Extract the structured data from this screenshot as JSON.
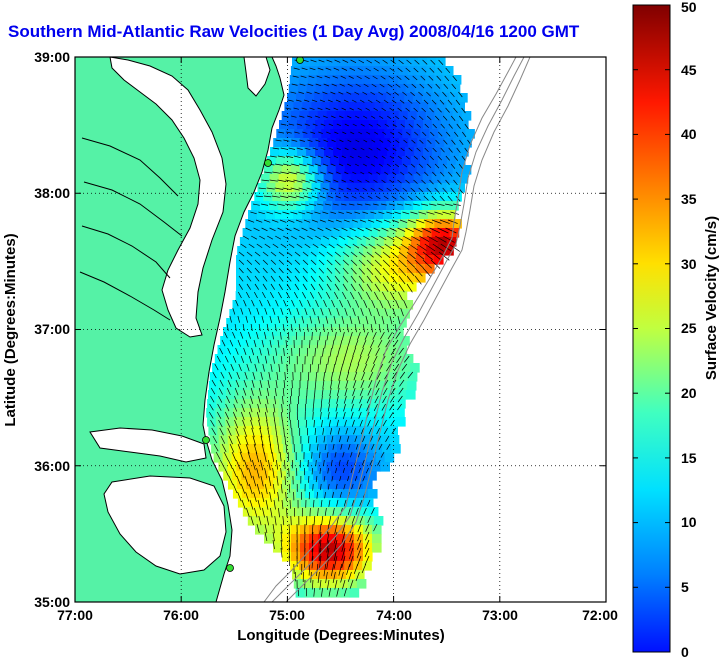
{
  "title": "Southern Mid-Atlantic Raw Velocities (1 Day Avg) 2008/04/16 1200 GMT",
  "title_color": "#0000ee",
  "map": {
    "xlabel": "Longitude (Degrees:Minutes)",
    "ylabel": "Latitude (Degrees:Minutes)",
    "lon_range": [
      -77,
      -72
    ],
    "lat_range": [
      35,
      39
    ],
    "lon_ticks": [
      "77:00",
      "76:00",
      "75:00",
      "74:00",
      "73:00",
      "72:00"
    ],
    "lat_ticks": [
      "39:00",
      "38:00",
      "37:00",
      "36:00",
      "35:00"
    ],
    "grid": "dotted",
    "land_color": "#55f2a6",
    "coast_color": "#000000",
    "bathymetry_color": "#888888",
    "station_color": "#33dd33",
    "vector_color": "#000000"
  },
  "colorbar": {
    "label": "Surface Velocity (cm/s)",
    "range": [
      0,
      50
    ],
    "ticks": [
      "0",
      "5",
      "10",
      "15",
      "20",
      "25",
      "30",
      "35",
      "40",
      "45",
      "50"
    ],
    "colormap": "jet"
  }
}
